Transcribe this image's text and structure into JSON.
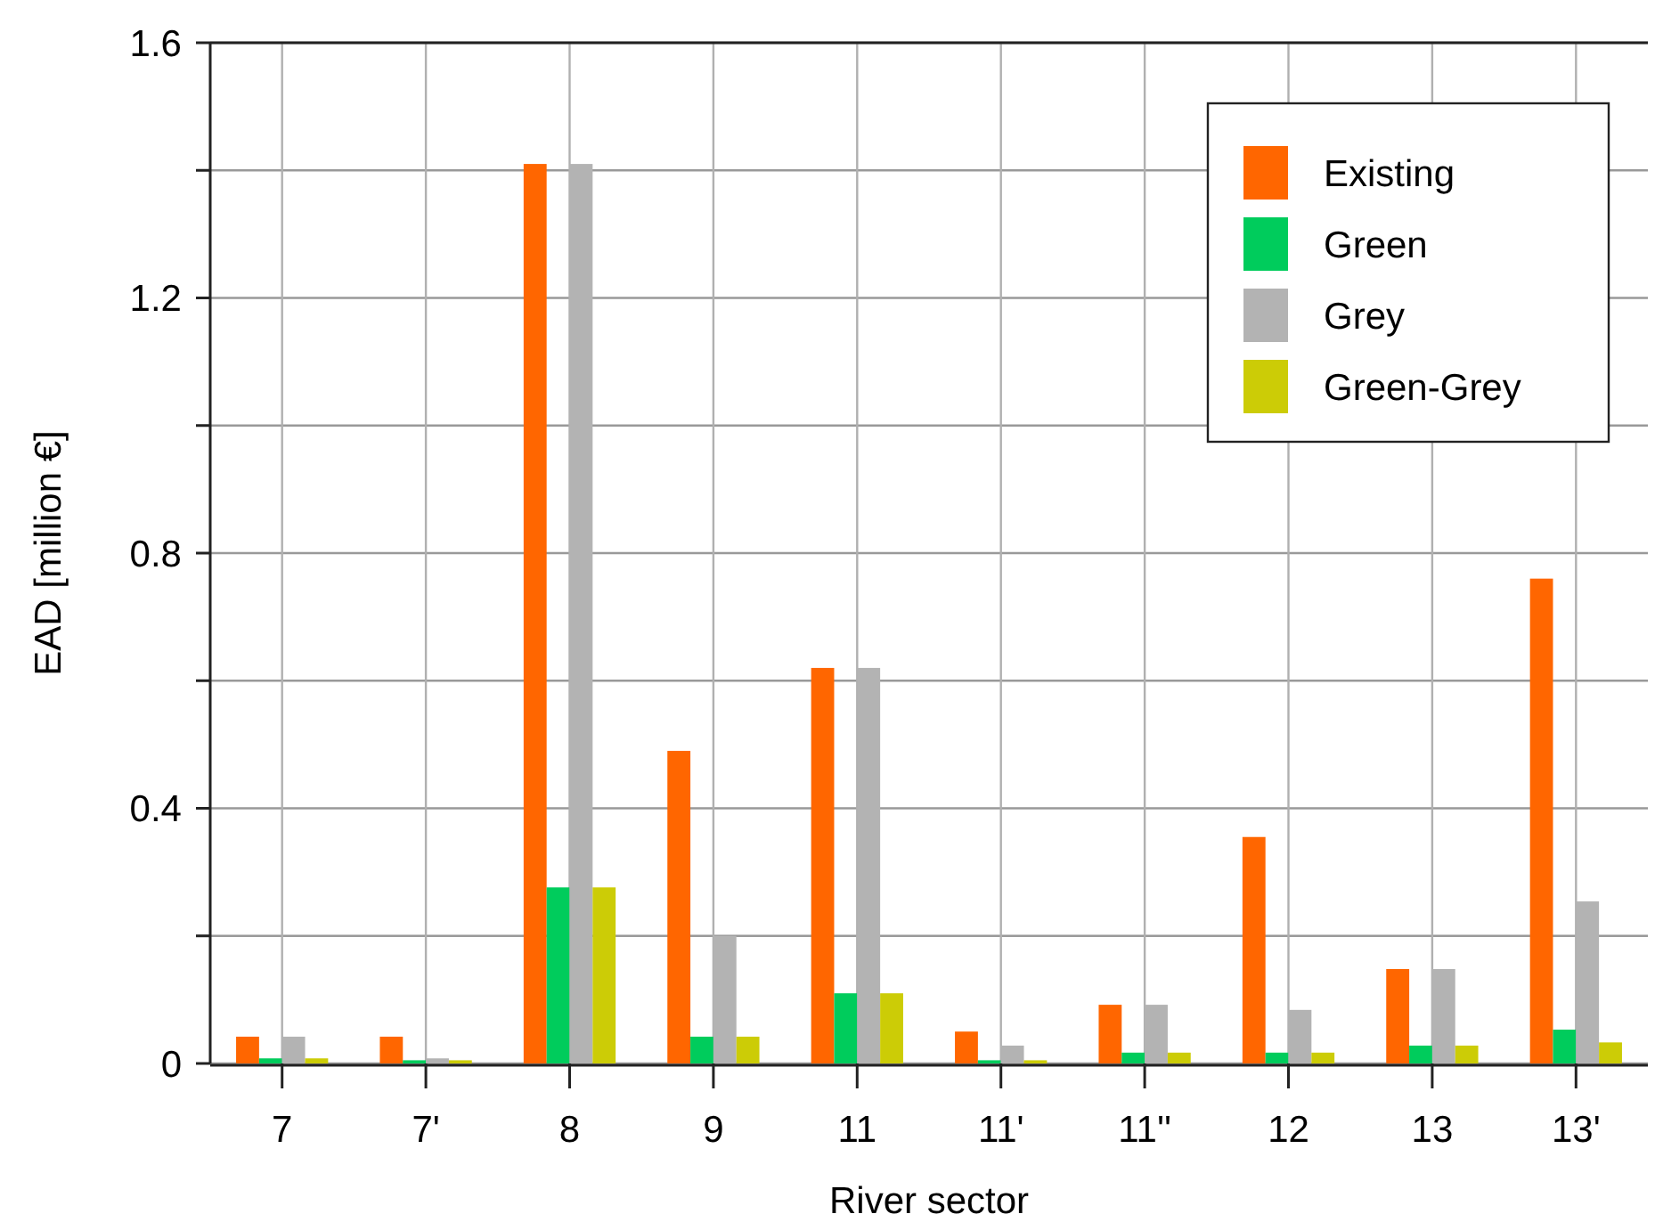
{
  "chart_data": {
    "type": "bar",
    "xlabel": "River sector",
    "ylabel": "EAD  [million €]",
    "categories": [
      "7",
      "7'",
      "8",
      "9",
      "11",
      "11'",
      "11''",
      "12",
      "13",
      "13'"
    ],
    "series": [
      {
        "name": "Existing",
        "color": "#ff6600",
        "values": [
          0.042,
          0.042,
          1.41,
          0.49,
          0.62,
          0.05,
          0.092,
          0.355,
          0.148,
          0.76
        ]
      },
      {
        "name": "Green",
        "color": "#00cc5c",
        "values": [
          0.008,
          0.005,
          0.276,
          0.042,
          0.11,
          0.005,
          0.017,
          0.017,
          0.028,
          0.053
        ]
      },
      {
        "name": "Grey",
        "color": "#b3b3b3",
        "values": [
          0.042,
          0.008,
          1.41,
          0.2,
          0.62,
          0.028,
          0.092,
          0.084,
          0.148,
          0.254
        ]
      },
      {
        "name": "Green-Grey",
        "color": "#cccc06",
        "values": [
          0.008,
          0.005,
          0.276,
          0.042,
          0.11,
          0.005,
          0.017,
          0.017,
          0.028,
          0.033
        ]
      }
    ],
    "ylim": [
      0,
      1.6
    ],
    "yticks": [
      0,
      {
        "value": 0.2,
        "label": null
      },
      0.4,
      {
        "value": 0.6,
        "label": null
      },
      0.8,
      {
        "value": 1.0,
        "label": null
      },
      1.2,
      {
        "value": 1.4,
        "label": null
      },
      1.6
    ],
    "grid": true,
    "legend": "top right"
  }
}
